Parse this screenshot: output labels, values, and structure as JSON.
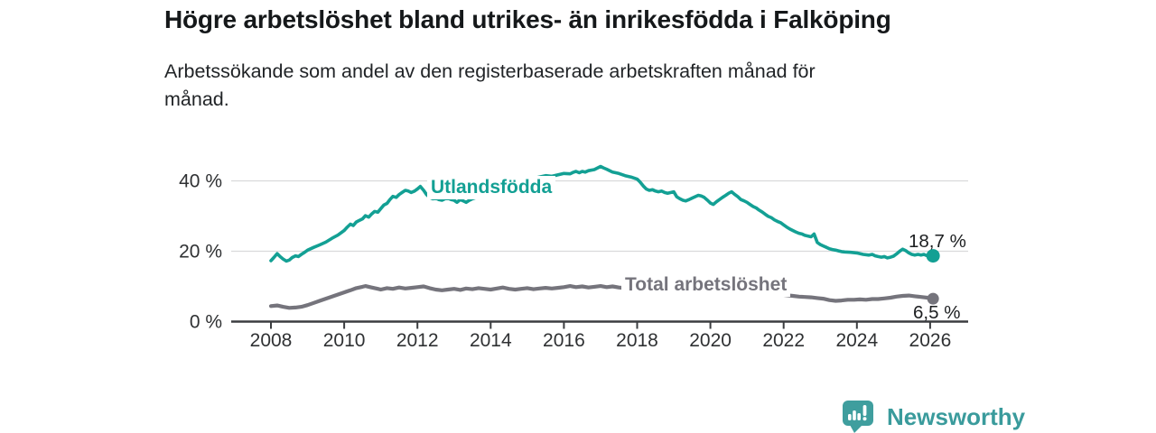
{
  "chart_data": {
    "type": "line",
    "title": "Högre arbetslöshet bland utrikes- än inrikesfödda i Falköping",
    "subtitle_lines": [
      "Arbetssökande som andel av den registerbaserade arbetskraften månad för",
      "månad."
    ],
    "unit": "%",
    "xlabel": "",
    "ylabel": "",
    "xlim": [
      2006.9,
      2027.0
    ],
    "ylim": [
      0,
      49
    ],
    "grid": "horizontal",
    "legend_position": "inline-labels",
    "x_ticks": [
      2008,
      2010,
      2012,
      2014,
      2016,
      2018,
      2020,
      2022,
      2024,
      2026
    ],
    "y_ticks": [
      {
        "value": 0,
        "label": "0 %"
      },
      {
        "value": 20,
        "label": "20 %"
      },
      {
        "value": 40,
        "label": "40 %"
      }
    ],
    "series": [
      {
        "name": "Utlandsfödda",
        "color": "#13a094",
        "end_label": "18,7 %",
        "end_value": 18.7,
        "points": [
          [
            2008.0,
            17.3
          ],
          [
            2008.08,
            18.2
          ],
          [
            2008.17,
            19.3
          ],
          [
            2008.25,
            18.5
          ],
          [
            2008.33,
            17.8
          ],
          [
            2008.42,
            17.2
          ],
          [
            2008.5,
            17.5
          ],
          [
            2008.58,
            18.2
          ],
          [
            2008.67,
            18.7
          ],
          [
            2008.75,
            18.5
          ],
          [
            2008.83,
            19.1
          ],
          [
            2008.92,
            19.7
          ],
          [
            2009.0,
            20.3
          ],
          [
            2009.17,
            21.1
          ],
          [
            2009.33,
            21.8
          ],
          [
            2009.5,
            22.6
          ],
          [
            2009.67,
            23.7
          ],
          [
            2009.83,
            24.6
          ],
          [
            2010.0,
            25.9
          ],
          [
            2010.08,
            26.8
          ],
          [
            2010.17,
            27.7
          ],
          [
            2010.25,
            27.3
          ],
          [
            2010.33,
            28.3
          ],
          [
            2010.42,
            28.8
          ],
          [
            2010.5,
            29.2
          ],
          [
            2010.58,
            30.1
          ],
          [
            2010.67,
            29.7
          ],
          [
            2010.75,
            30.6
          ],
          [
            2010.83,
            31.3
          ],
          [
            2010.92,
            31.1
          ],
          [
            2011.0,
            32.1
          ],
          [
            2011.08,
            33.1
          ],
          [
            2011.17,
            33.6
          ],
          [
            2011.25,
            34.7
          ],
          [
            2011.33,
            35.6
          ],
          [
            2011.42,
            35.3
          ],
          [
            2011.5,
            36.1
          ],
          [
            2011.58,
            36.7
          ],
          [
            2011.67,
            37.3
          ],
          [
            2011.75,
            37.1
          ],
          [
            2011.83,
            36.7
          ],
          [
            2011.92,
            37.1
          ],
          [
            2012.0,
            37.7
          ],
          [
            2012.08,
            38.4
          ],
          [
            2012.17,
            37.3
          ],
          [
            2012.25,
            36.1
          ],
          [
            2012.33,
            35.3
          ],
          [
            2012.42,
            34.9
          ],
          [
            2012.5,
            35.1
          ],
          [
            2012.58,
            34.7
          ],
          [
            2012.67,
            34.5
          ],
          [
            2012.75,
            34.9
          ],
          [
            2012.83,
            35.1
          ],
          [
            2012.92,
            34.7
          ],
          [
            2013.0,
            34.5
          ],
          [
            2013.08,
            33.9
          ],
          [
            2013.17,
            34.7
          ],
          [
            2013.25,
            34.3
          ],
          [
            2013.33,
            33.9
          ],
          [
            2013.42,
            34.5
          ],
          [
            2013.5,
            34.9
          ],
          [
            2013.67,
            35.5
          ],
          [
            2013.83,
            36.3
          ],
          [
            2014.0,
            37.1
          ],
          [
            2014.17,
            37.7
          ],
          [
            2014.33,
            38.1
          ],
          [
            2014.5,
            38.7
          ],
          [
            2014.67,
            39.1
          ],
          [
            2014.83,
            39.7
          ],
          [
            2015.0,
            40.1
          ],
          [
            2015.17,
            40.7
          ],
          [
            2015.33,
            41.1
          ],
          [
            2015.5,
            41.5
          ],
          [
            2015.67,
            41.3
          ],
          [
            2015.83,
            41.7
          ],
          [
            2016.0,
            42.1
          ],
          [
            2016.17,
            42.0
          ],
          [
            2016.25,
            42.4
          ],
          [
            2016.33,
            42.7
          ],
          [
            2016.42,
            42.3
          ],
          [
            2016.5,
            42.7
          ],
          [
            2016.58,
            42.5
          ],
          [
            2016.67,
            42.9
          ],
          [
            2016.83,
            43.2
          ],
          [
            2017.0,
            44.1
          ],
          [
            2017.08,
            43.7
          ],
          [
            2017.17,
            43.3
          ],
          [
            2017.25,
            42.9
          ],
          [
            2017.33,
            42.5
          ],
          [
            2017.5,
            42.1
          ],
          [
            2017.67,
            41.5
          ],
          [
            2017.83,
            41.1
          ],
          [
            2018.0,
            40.5
          ],
          [
            2018.08,
            39.7
          ],
          [
            2018.17,
            38.5
          ],
          [
            2018.25,
            37.7
          ],
          [
            2018.33,
            37.3
          ],
          [
            2018.42,
            37.5
          ],
          [
            2018.5,
            37.1
          ],
          [
            2018.58,
            36.9
          ],
          [
            2018.67,
            37.1
          ],
          [
            2018.75,
            36.7
          ],
          [
            2018.83,
            36.5
          ],
          [
            2018.92,
            36.7
          ],
          [
            2019.0,
            36.9
          ],
          [
            2019.08,
            35.5
          ],
          [
            2019.17,
            34.9
          ],
          [
            2019.25,
            34.5
          ],
          [
            2019.33,
            34.3
          ],
          [
            2019.42,
            34.7
          ],
          [
            2019.5,
            35.1
          ],
          [
            2019.58,
            35.5
          ],
          [
            2019.67,
            35.9
          ],
          [
            2019.75,
            35.7
          ],
          [
            2019.83,
            35.3
          ],
          [
            2019.92,
            34.5
          ],
          [
            2020.0,
            33.7
          ],
          [
            2020.08,
            33.3
          ],
          [
            2020.17,
            34.1
          ],
          [
            2020.25,
            34.7
          ],
          [
            2020.33,
            35.3
          ],
          [
            2020.42,
            35.9
          ],
          [
            2020.5,
            36.5
          ],
          [
            2020.58,
            36.9
          ],
          [
            2020.67,
            36.1
          ],
          [
            2020.75,
            35.5
          ],
          [
            2020.83,
            34.7
          ],
          [
            2020.92,
            34.3
          ],
          [
            2021.0,
            33.9
          ],
          [
            2021.08,
            33.3
          ],
          [
            2021.17,
            32.7
          ],
          [
            2021.25,
            32.3
          ],
          [
            2021.33,
            31.7
          ],
          [
            2021.42,
            31.1
          ],
          [
            2021.5,
            30.5
          ],
          [
            2021.58,
            29.9
          ],
          [
            2021.67,
            29.5
          ],
          [
            2021.75,
            28.9
          ],
          [
            2021.83,
            28.5
          ],
          [
            2021.92,
            28.1
          ],
          [
            2022.0,
            27.5
          ],
          [
            2022.08,
            26.9
          ],
          [
            2022.17,
            26.3
          ],
          [
            2022.25,
            25.9
          ],
          [
            2022.33,
            25.5
          ],
          [
            2022.42,
            25.1
          ],
          [
            2022.5,
            24.9
          ],
          [
            2022.58,
            24.5
          ],
          [
            2022.67,
            24.3
          ],
          [
            2022.75,
            24.1
          ],
          [
            2022.83,
            24.9
          ],
          [
            2022.92,
            22.5
          ],
          [
            2023.0,
            21.9
          ],
          [
            2023.08,
            21.5
          ],
          [
            2023.17,
            21.1
          ],
          [
            2023.25,
            20.7
          ],
          [
            2023.33,
            20.5
          ],
          [
            2023.42,
            20.3
          ],
          [
            2023.5,
            20.1
          ],
          [
            2023.58,
            19.9
          ],
          [
            2023.67,
            19.8
          ],
          [
            2023.83,
            19.7
          ],
          [
            2024.0,
            19.5
          ],
          [
            2024.17,
            19.1
          ],
          [
            2024.33,
            18.9
          ],
          [
            2024.42,
            19.1
          ],
          [
            2024.5,
            18.7
          ],
          [
            2024.58,
            18.5
          ],
          [
            2024.67,
            18.3
          ],
          [
            2024.75,
            18.5
          ],
          [
            2024.83,
            18.1
          ],
          [
            2024.92,
            18.3
          ],
          [
            2025.0,
            18.6
          ],
          [
            2025.08,
            19.2
          ],
          [
            2025.17,
            20.0
          ],
          [
            2025.25,
            20.6
          ],
          [
            2025.33,
            20.2
          ],
          [
            2025.42,
            19.5
          ],
          [
            2025.5,
            19.1
          ],
          [
            2025.58,
            18.9
          ],
          [
            2025.67,
            19.1
          ],
          [
            2025.75,
            18.9
          ],
          [
            2025.83,
            19.1
          ],
          [
            2025.92,
            18.7
          ],
          [
            2026.08,
            18.7
          ]
        ]
      },
      {
        "name": "Total arbetslöshet",
        "color": "#75747c",
        "end_label": "6,5 %",
        "end_value": 6.5,
        "points": [
          [
            2008.0,
            4.4
          ],
          [
            2008.17,
            4.6
          ],
          [
            2008.33,
            4.2
          ],
          [
            2008.5,
            3.9
          ],
          [
            2008.67,
            4.0
          ],
          [
            2008.83,
            4.2
          ],
          [
            2009.0,
            4.7
          ],
          [
            2009.17,
            5.3
          ],
          [
            2009.33,
            5.9
          ],
          [
            2009.5,
            6.5
          ],
          [
            2009.67,
            7.1
          ],
          [
            2009.83,
            7.7
          ],
          [
            2010.0,
            8.3
          ],
          [
            2010.17,
            8.9
          ],
          [
            2010.33,
            9.5
          ],
          [
            2010.5,
            9.9
          ],
          [
            2010.58,
            10.1
          ],
          [
            2010.75,
            9.7
          ],
          [
            2010.92,
            9.3
          ],
          [
            2011.0,
            9.1
          ],
          [
            2011.17,
            9.5
          ],
          [
            2011.33,
            9.3
          ],
          [
            2011.5,
            9.7
          ],
          [
            2011.67,
            9.4
          ],
          [
            2011.83,
            9.6
          ],
          [
            2012.0,
            9.8
          ],
          [
            2012.17,
            10.0
          ],
          [
            2012.33,
            9.5
          ],
          [
            2012.5,
            9.1
          ],
          [
            2012.67,
            8.9
          ],
          [
            2012.83,
            9.1
          ],
          [
            2013.0,
            9.3
          ],
          [
            2013.17,
            9.0
          ],
          [
            2013.33,
            9.4
          ],
          [
            2013.5,
            9.2
          ],
          [
            2013.67,
            9.5
          ],
          [
            2013.83,
            9.3
          ],
          [
            2014.0,
            9.1
          ],
          [
            2014.17,
            9.4
          ],
          [
            2014.33,
            9.7
          ],
          [
            2014.5,
            9.3
          ],
          [
            2014.67,
            9.1
          ],
          [
            2014.83,
            9.3
          ],
          [
            2015.0,
            9.5
          ],
          [
            2015.17,
            9.2
          ],
          [
            2015.33,
            9.4
          ],
          [
            2015.5,
            9.6
          ],
          [
            2015.67,
            9.4
          ],
          [
            2015.83,
            9.6
          ],
          [
            2016.0,
            9.8
          ],
          [
            2016.17,
            10.1
          ],
          [
            2016.33,
            9.8
          ],
          [
            2016.5,
            10.0
          ],
          [
            2016.67,
            9.7
          ],
          [
            2016.83,
            9.9
          ],
          [
            2017.0,
            10.1
          ],
          [
            2017.17,
            9.8
          ],
          [
            2017.33,
            10.0
          ],
          [
            2017.5,
            9.7
          ],
          [
            2017.67,
            9.5
          ],
          [
            2017.83,
            9.3
          ],
          [
            2018.0,
            9.1
          ],
          [
            2018.25,
            8.9
          ],
          [
            2018.5,
            8.8
          ],
          [
            2018.75,
            8.7
          ],
          [
            2019.0,
            8.6
          ],
          [
            2019.25,
            8.5
          ],
          [
            2019.5,
            8.4
          ],
          [
            2019.75,
            8.6
          ],
          [
            2020.0,
            8.9
          ],
          [
            2020.25,
            9.1
          ],
          [
            2020.5,
            9.3
          ],
          [
            2020.75,
            9.0
          ],
          [
            2021.0,
            8.8
          ],
          [
            2021.25,
            8.5
          ],
          [
            2021.5,
            8.2
          ],
          [
            2021.75,
            7.9
          ],
          [
            2022.0,
            7.6
          ],
          [
            2022.25,
            7.3
          ],
          [
            2022.42,
            7.1
          ],
          [
            2022.58,
            7.0
          ],
          [
            2022.75,
            6.9
          ],
          [
            2022.92,
            6.7
          ],
          [
            2023.08,
            6.5
          ],
          [
            2023.25,
            6.1
          ],
          [
            2023.42,
            5.9
          ],
          [
            2023.58,
            6.0
          ],
          [
            2023.75,
            6.2
          ],
          [
            2023.92,
            6.2
          ],
          [
            2024.08,
            6.3
          ],
          [
            2024.25,
            6.2
          ],
          [
            2024.42,
            6.4
          ],
          [
            2024.58,
            6.4
          ],
          [
            2024.75,
            6.6
          ],
          [
            2024.92,
            6.8
          ],
          [
            2025.08,
            7.1
          ],
          [
            2025.25,
            7.3
          ],
          [
            2025.42,
            7.4
          ],
          [
            2025.58,
            7.2
          ],
          [
            2025.75,
            7.0
          ],
          [
            2025.92,
            6.8
          ],
          [
            2026.08,
            6.5
          ]
        ]
      }
    ],
    "colors": {
      "gridline": "#d9dadb",
      "axis": "#3b3d40",
      "axis_text": "#2f3133"
    }
  },
  "footer": {
    "brand": "Newsworthy",
    "brand_color": "#3a9b9c"
  }
}
